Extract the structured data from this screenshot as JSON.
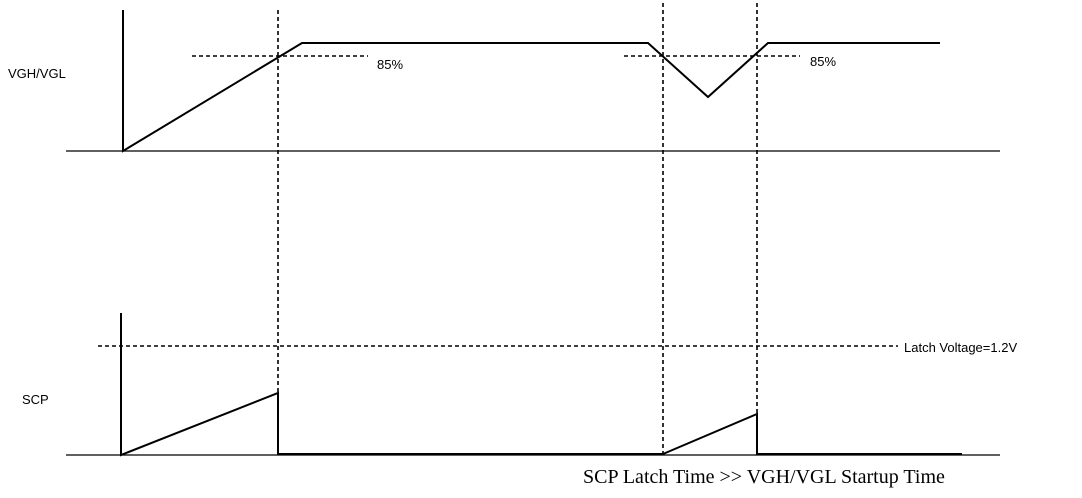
{
  "signals": {
    "vgh_vgl": {
      "label": "VGH/VGL"
    },
    "scp": {
      "label": "SCP"
    }
  },
  "annotations": {
    "threshold_rise": "85%",
    "threshold_recover": "85%",
    "latch_voltage": "Latch Voltage=1.2V"
  },
  "caption": "SCP Latch Time >> VGH/VGL Startup Time"
}
